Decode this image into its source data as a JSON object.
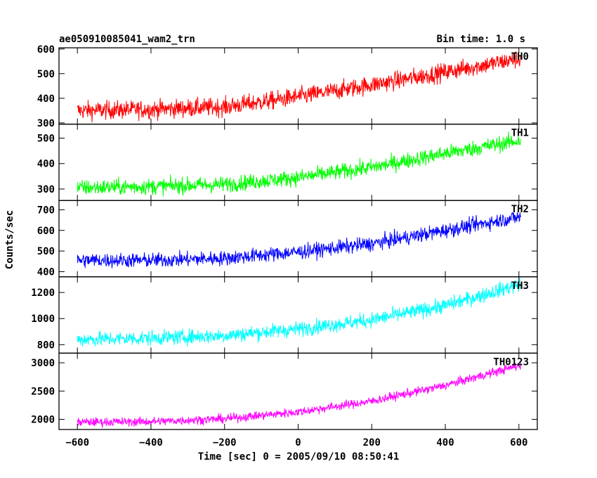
{
  "header": {
    "title": "ae050910085041_wam2_trn",
    "bin_time": "Bin time: 1.0 s"
  },
  "chart_data": {
    "type": "line",
    "xlabel": "Time [sec] 0 = 2005/09/10 08:50:41",
    "ylabel": "Counts/sec",
    "xlim": [
      -650,
      650
    ],
    "x_ticks": [
      -600,
      -400,
      -200,
      0,
      200,
      400,
      600
    ],
    "x_tick_labels": [
      "−600",
      "−400",
      "−200",
      "0",
      "200",
      "400",
      "600"
    ],
    "x_step": 1.0,
    "panels": [
      {
        "name": "TH0",
        "color": "#ff0000",
        "ylim": [
          295,
          605
        ],
        "y_ticks": [
          300,
          400,
          500,
          600
        ],
        "knots_x": [
          -600,
          -400,
          -200,
          -50,
          100,
          300,
          600
        ],
        "knots_y": [
          350,
          355,
          365,
          395,
          430,
          480,
          560
        ],
        "noise": 26
      },
      {
        "name": "TH1",
        "color": "#00ff00",
        "ylim": [
          255,
          555
        ],
        "y_ticks": [
          300,
          400,
          500
        ],
        "knots_x": [
          -600,
          -400,
          -200,
          0,
          200,
          400,
          600
        ],
        "knots_y": [
          305,
          310,
          318,
          345,
          385,
          440,
          490
        ],
        "noise": 22
      },
      {
        "name": "TH2",
        "color": "#0000ff",
        "ylim": [
          375,
          745
        ],
        "y_ticks": [
          400,
          500,
          600,
          700
        ],
        "knots_x": [
          -600,
          -400,
          -200,
          0,
          200,
          400,
          600
        ],
        "knots_y": [
          455,
          455,
          465,
          495,
          535,
          600,
          665
        ],
        "noise": 25
      },
      {
        "name": "TH3",
        "color": "#00ffff",
        "ylim": [
          735,
          1320
        ],
        "y_ticks": [
          800,
          1000,
          1200
        ],
        "knots_x": [
          -600,
          -400,
          -200,
          0,
          200,
          400,
          600
        ],
        "knots_y": [
          840,
          850,
          870,
          920,
          990,
          1100,
          1260
        ],
        "noise": 40
      },
      {
        "name": "TH0123",
        "color": "#ff00ff",
        "ylim": [
          1820,
          3170
        ],
        "y_ticks": [
          2000,
          2500,
          3000
        ],
        "knots_x": [
          -600,
          -400,
          -200,
          0,
          200,
          400,
          600
        ],
        "knots_y": [
          1950,
          1960,
          2010,
          2130,
          2320,
          2600,
          2950
        ],
        "noise": 55
      }
    ]
  }
}
